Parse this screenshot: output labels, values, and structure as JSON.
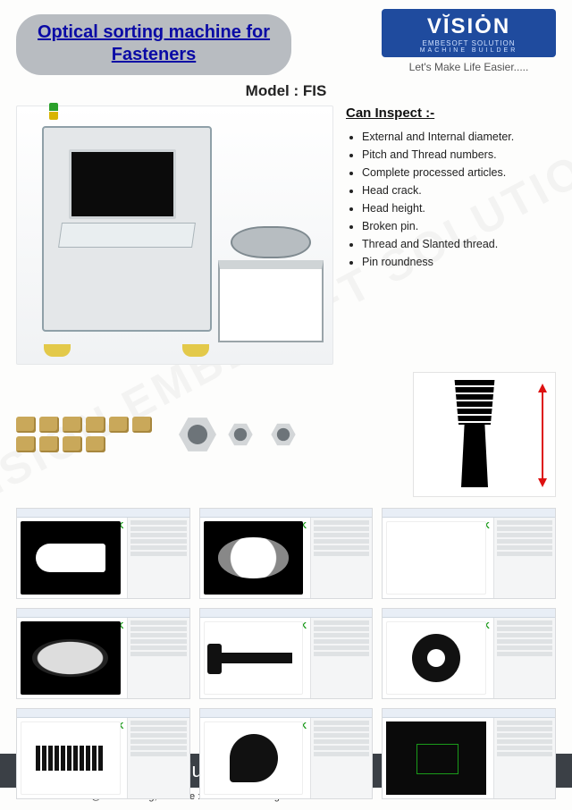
{
  "header": {
    "title_line1": "Optical sorting machine for",
    "title_line2": "Fasteners",
    "title_color": "#0a0aa5",
    "pill_bg": "#b8bcc1"
  },
  "logo": {
    "brand": "VĬSIȮN",
    "sub1": "EMBESOFT SOLUTION",
    "sub2": "MACHINE BUILDER",
    "tagline": "Let's Make Life Easier.....",
    "bg_color": "#1f4b9e"
  },
  "model_label": "Model : FIS",
  "inspect": {
    "heading": "Can Inspect :-",
    "items": [
      "External and Internal diameter.",
      "Pitch and Thread numbers.",
      "Complete processed articles.",
      "Head crack.",
      "Head height.",
      "Broken pin.",
      "Thread and Slanted thread.",
      "Pin roundness"
    ]
  },
  "watermark": "VISION EMBESOFT SOLUTION",
  "screenshots": {
    "ok_label": "OK",
    "items": [
      {
        "variant": "black",
        "shape": "bolt"
      },
      {
        "variant": "black",
        "shape": "cap"
      },
      {
        "variant": "white",
        "shape": "u"
      },
      {
        "variant": "black",
        "shape": "oval"
      },
      {
        "variant": "white",
        "shape": "nail"
      },
      {
        "variant": "white",
        "shape": "ring"
      },
      {
        "variant": "white",
        "shape": "screw2"
      },
      {
        "variant": "white",
        "shape": "disc"
      },
      {
        "variant": "dark",
        "shape": "dark"
      }
    ]
  },
  "footer": {
    "company": "Vision Embesoft Solution",
    "contact": "E-mail : sales@vesindia.org, Website : www.vesindia.org",
    "bar_bg": "#3b4046"
  },
  "colors": {
    "page_bg": "#fdfdfc",
    "dim_arrow": "#d11a1a",
    "ok_color": "#1a9b1a"
  }
}
